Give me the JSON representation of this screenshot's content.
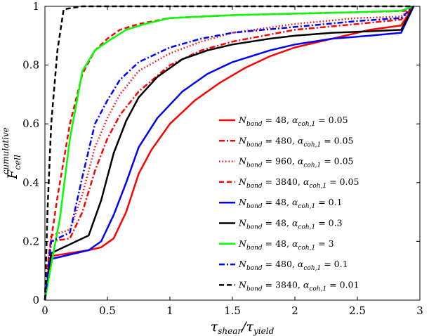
{
  "chart_data": {
    "type": "line",
    "title": "",
    "xlabel": "τshear/τyield",
    "ylabel": "Fcell cumulative",
    "xlabel_parts": {
      "main": "τ",
      "sub1": "shear",
      "slash": "/τ",
      "sub2": "yield"
    },
    "ylabel_parts": {
      "main": "F",
      "sub": "cell",
      "sup": "cumulative"
    },
    "xlim": [
      0,
      3
    ],
    "ylim": [
      0,
      1
    ],
    "xticks": [
      "0",
      "0.5",
      "1",
      "1.5",
      "2",
      "2.5",
      "3"
    ],
    "yticks": [
      "0",
      "0.2",
      "0.4",
      "0.6",
      "0.8",
      "1"
    ],
    "xtick_values": [
      0,
      0.5,
      1,
      1.5,
      2,
      2.5,
      3
    ],
    "ytick_values": [
      0,
      0.2,
      0.4,
      0.6,
      0.8,
      1
    ],
    "grid": false,
    "legend_position": "center-right",
    "series": [
      {
        "name": "Nbond = 48, αcoh,1 = 0.05",
        "n": "48",
        "alpha": "0.05",
        "color": "#ff0000",
        "dash": "solid",
        "x": [
          0,
          0.05,
          0.35,
          0.45,
          0.55,
          0.65,
          0.75,
          0.85,
          1.0,
          1.2,
          1.4,
          1.6,
          1.8,
          2.0,
          2.2,
          2.4,
          2.6,
          2.85,
          2.95
        ],
        "y": [
          0,
          0.15,
          0.17,
          0.18,
          0.21,
          0.3,
          0.43,
          0.51,
          0.6,
          0.68,
          0.74,
          0.79,
          0.83,
          0.86,
          0.88,
          0.9,
          0.92,
          0.935,
          1.0
        ]
      },
      {
        "name": "Nbond = 480, αcoh,1 = 0.05",
        "n": "480",
        "alpha": "0.05",
        "color": "#ff0000",
        "dash": "dashdot",
        "x": [
          0,
          0.05,
          0.2,
          0.3,
          0.4,
          0.5,
          0.6,
          0.75,
          1.0,
          1.25,
          1.5,
          2.0,
          2.5,
          2.85,
          2.95
        ],
        "y": [
          0,
          0.2,
          0.21,
          0.3,
          0.44,
          0.55,
          0.63,
          0.71,
          0.8,
          0.85,
          0.88,
          0.92,
          0.94,
          0.955,
          1.0
        ]
      },
      {
        "name": "Nbond = 960, αcoh,1 = 0.05",
        "n": "960",
        "alpha": "0.05",
        "color": "#ff0000",
        "dash": "dotted",
        "x": [
          0,
          0.05,
          0.2,
          0.3,
          0.4,
          0.5,
          0.6,
          0.75,
          1.0,
          1.25,
          1.5,
          2.0,
          2.5,
          2.85,
          2.95
        ],
        "y": [
          0,
          0.22,
          0.24,
          0.36,
          0.52,
          0.62,
          0.7,
          0.78,
          0.84,
          0.88,
          0.91,
          0.94,
          0.96,
          0.965,
          1.0
        ]
      },
      {
        "name": "Nbond = 3840, αcoh,1 = 0.05",
        "n": "3840",
        "alpha": "0.05",
        "color": "#ff0000",
        "dash": "dashed",
        "x": [
          0,
          0.03,
          0.1,
          0.2,
          0.3,
          0.4,
          0.5,
          0.6,
          0.75,
          1.0,
          1.5,
          2.0,
          2.5,
          2.9,
          2.95
        ],
        "y": [
          0,
          0.15,
          0.35,
          0.6,
          0.77,
          0.85,
          0.89,
          0.92,
          0.94,
          0.96,
          0.97,
          0.975,
          0.98,
          0.985,
          1.0
        ]
      },
      {
        "name": "Nbond = 48, αcoh,1 = 0.1",
        "n": "48",
        "alpha": "0.1",
        "color": "#0000ff",
        "dash": "solid",
        "x": [
          0,
          0.05,
          0.35,
          0.45,
          0.55,
          0.65,
          0.75,
          0.9,
          1.1,
          1.3,
          1.5,
          1.8,
          2.0,
          2.3,
          2.6,
          2.85,
          2.95
        ],
        "y": [
          0,
          0.14,
          0.17,
          0.2,
          0.29,
          0.4,
          0.52,
          0.62,
          0.71,
          0.77,
          0.81,
          0.85,
          0.87,
          0.89,
          0.9,
          0.91,
          1.0
        ]
      },
      {
        "name": "Nbond = 48, αcoh,1 = 0.3",
        "n": "48",
        "alpha": "0.3",
        "color": "#000000",
        "dash": "solid",
        "x": [
          0,
          0.05,
          0.35,
          0.45,
          0.55,
          0.65,
          0.75,
          0.9,
          1.1,
          1.3,
          1.5,
          1.8,
          2.0,
          2.3,
          2.6,
          2.85,
          2.95
        ],
        "y": [
          0,
          0.16,
          0.22,
          0.34,
          0.5,
          0.61,
          0.69,
          0.76,
          0.82,
          0.85,
          0.87,
          0.89,
          0.9,
          0.91,
          0.915,
          0.92,
          1.0
        ]
      },
      {
        "name": "Nbond = 48, αcoh,1 = 3",
        "n": "48",
        "alpha": "3",
        "color": "#00ff00",
        "dash": "solid",
        "x": [
          0,
          0.05,
          0.12,
          0.2,
          0.3,
          0.4,
          0.5,
          0.65,
          0.8,
          1.0,
          1.5,
          2.0,
          2.5,
          2.85,
          2.95
        ],
        "y": [
          0,
          0.12,
          0.28,
          0.55,
          0.78,
          0.85,
          0.88,
          0.92,
          0.94,
          0.96,
          0.97,
          0.975,
          0.98,
          0.985,
          1.0
        ]
      },
      {
        "name": "Nbond = 480, αcoh,1 = 0.1",
        "n": "480",
        "alpha": "0.1",
        "color": "#0000ff",
        "dash": "dashdot",
        "x": [
          0,
          0.05,
          0.2,
          0.3,
          0.4,
          0.5,
          0.6,
          0.75,
          1.0,
          1.25,
          1.5,
          2.0,
          2.5,
          2.85,
          2.95
        ],
        "y": [
          0,
          0.2,
          0.23,
          0.42,
          0.6,
          0.68,
          0.75,
          0.81,
          0.86,
          0.89,
          0.91,
          0.93,
          0.95,
          0.96,
          1.0
        ]
      },
      {
        "name": "Nbond = 3840, αcoh,1 = 0.01",
        "n": "3840",
        "alpha": "0.01",
        "color": "#000000",
        "dash": "dashed",
        "x": [
          0,
          0.02,
          0.05,
          0.1,
          0.15,
          0.3,
          1.0,
          2.0,
          2.95
        ],
        "y": [
          0,
          0.3,
          0.6,
          0.85,
          0.99,
          1.0,
          1.0,
          1.0,
          1.0
        ]
      }
    ]
  }
}
